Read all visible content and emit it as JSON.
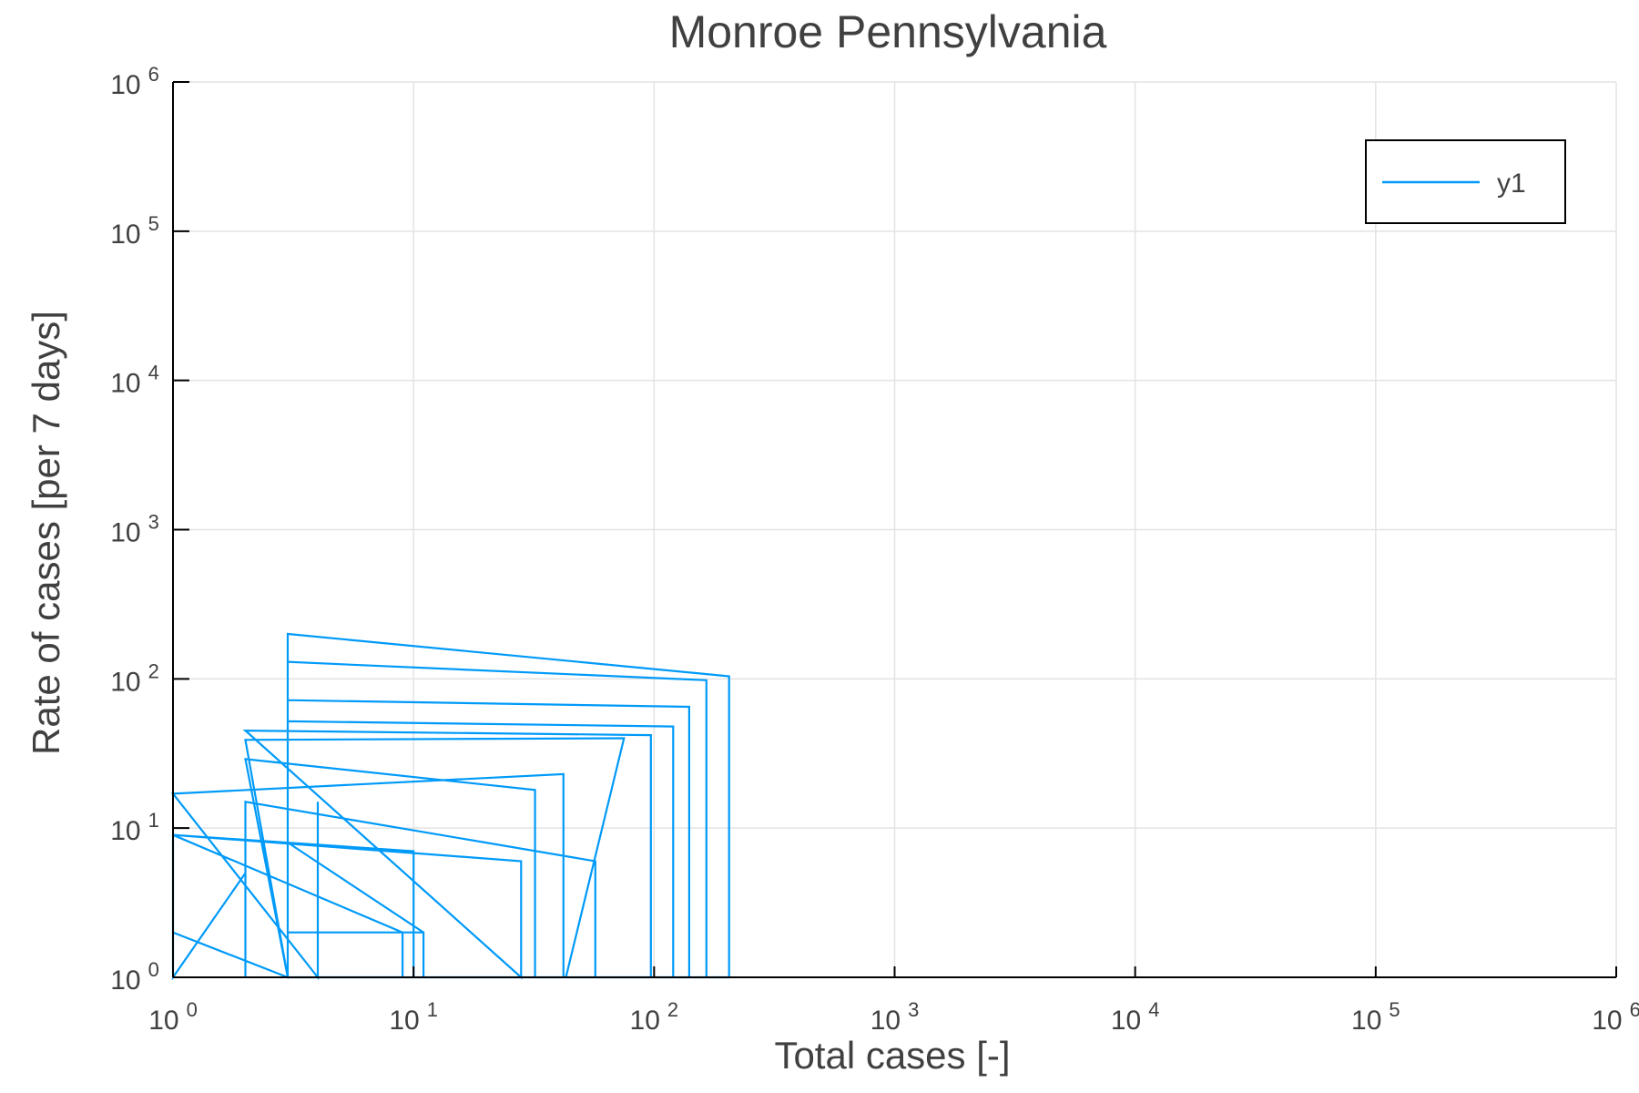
{
  "chart_data": {
    "type": "line",
    "title": "Monroe Pennsylvania",
    "xlabel": "Total cases [-]",
    "ylabel": "Rate of cases [per 7 days]",
    "xscale": "log",
    "yscale": "log",
    "xlim": [
      1,
      1000000
    ],
    "ylim": [
      1,
      1000000
    ],
    "xticks": [
      {
        "base": "10",
        "exp": "0"
      },
      {
        "base": "10",
        "exp": "1"
      },
      {
        "base": "10",
        "exp": "2"
      },
      {
        "base": "10",
        "exp": "3"
      },
      {
        "base": "10",
        "exp": "4"
      },
      {
        "base": "10",
        "exp": "5"
      },
      {
        "base": "10",
        "exp": "6"
      }
    ],
    "yticks": [
      {
        "base": "10",
        "exp": "0"
      },
      {
        "base": "10",
        "exp": "1"
      },
      {
        "base": "10",
        "exp": "2"
      },
      {
        "base": "10",
        "exp": "3"
      },
      {
        "base": "10",
        "exp": "4"
      },
      {
        "base": "10",
        "exp": "5"
      },
      {
        "base": "10",
        "exp": "6"
      }
    ],
    "grid": true,
    "legend_position": "top-right",
    "series": [
      {
        "name": "y1",
        "color": "#009af9",
        "points": [
          [
            1,
            1
          ],
          [
            1,
            2
          ],
          [
            3,
            1
          ],
          [
            3,
            2
          ],
          [
            11,
            2
          ],
          [
            11,
            1
          ],
          [
            10,
            1
          ],
          [
            10,
            7
          ],
          [
            1,
            9
          ],
          [
            1,
            1
          ],
          [
            2,
            5
          ],
          [
            2,
            1
          ],
          [
            2,
            15
          ],
          [
            57,
            6
          ],
          [
            57,
            1
          ],
          [
            43,
            1
          ],
          [
            75,
            40
          ],
          [
            2,
            39
          ],
          [
            3,
            1
          ],
          [
            3,
            8
          ],
          [
            11,
            2
          ],
          [
            11,
            1
          ],
          [
            9,
            1
          ],
          [
            9,
            2
          ],
          [
            1,
            9
          ],
          [
            28,
            6
          ],
          [
            28,
            1
          ],
          [
            2,
            45
          ],
          [
            97,
            42
          ],
          [
            97,
            1
          ],
          [
            3,
            1
          ],
          [
            3,
            52
          ],
          [
            120,
            48
          ],
          [
            120,
            1
          ],
          [
            3,
            1
          ],
          [
            3,
            72
          ],
          [
            140,
            65
          ],
          [
            140,
            1
          ],
          [
            3,
            1
          ],
          [
            3,
            130
          ],
          [
            165,
            98
          ],
          [
            165,
            1
          ],
          [
            3,
            1
          ],
          [
            3,
            155
          ],
          [
            3,
            200
          ],
          [
            205,
            104
          ],
          [
            205,
            1
          ],
          [
            3,
            1
          ],
          [
            2,
            29
          ],
          [
            32,
            18
          ],
          [
            32,
            1
          ],
          [
            4,
            1
          ],
          [
            4,
            15
          ],
          [
            4,
            1
          ],
          [
            1,
            17
          ],
          [
            42,
            23
          ],
          [
            42,
            1
          ]
        ]
      }
    ]
  }
}
